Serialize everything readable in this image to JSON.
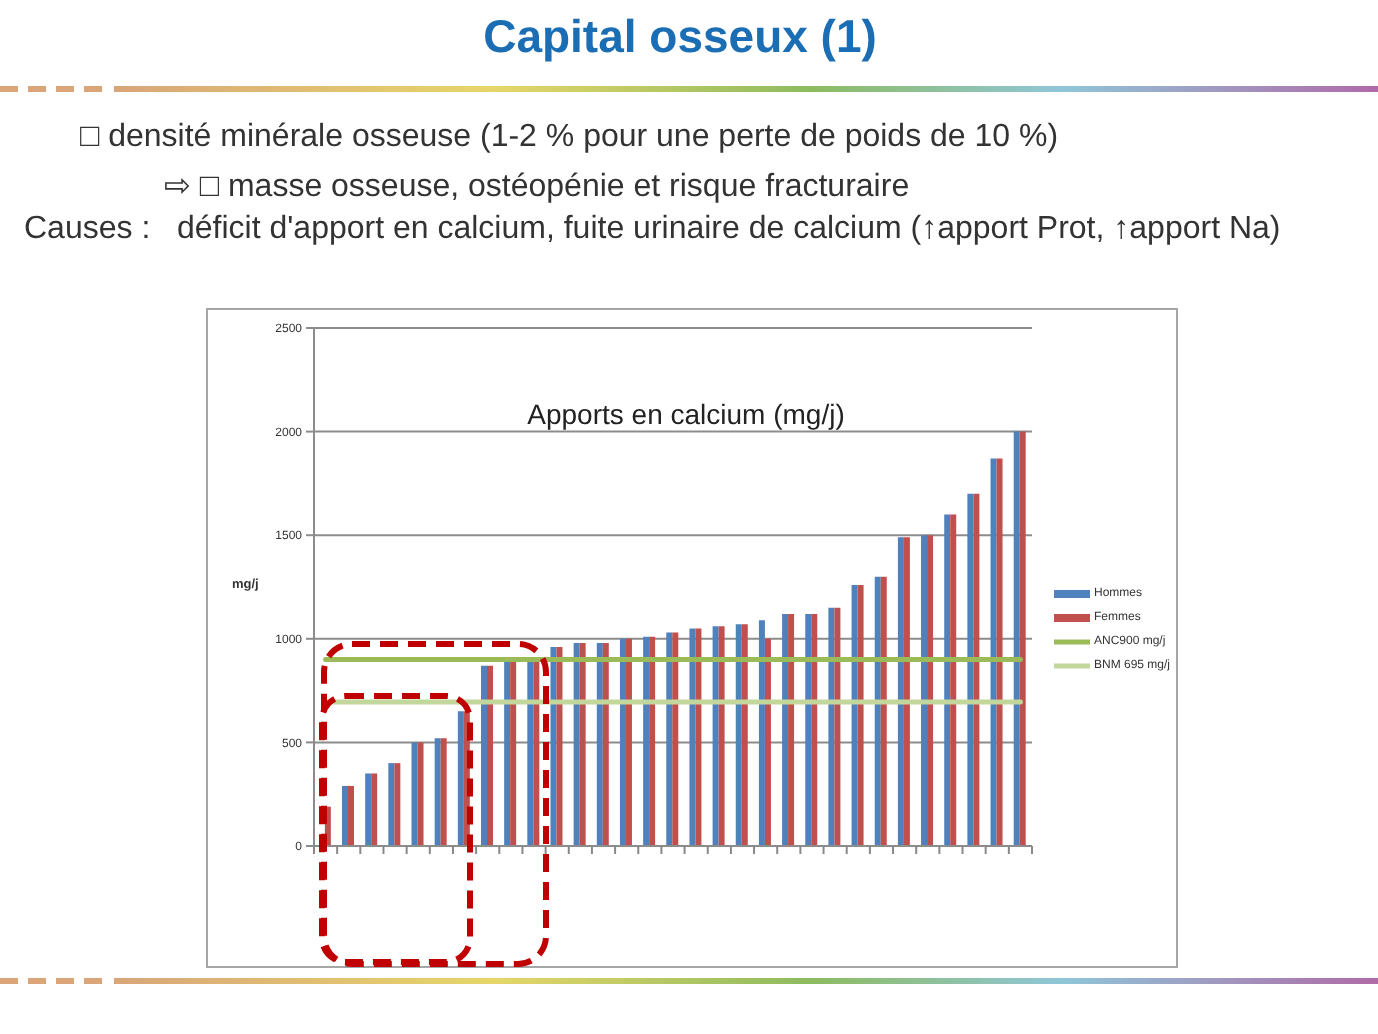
{
  "chart_data": {
    "type": "bar",
    "title": "Capital osseux (1)",
    "subtitle": "Apports en calcium (mg/j)",
    "ylabel": "mg/j",
    "annotations": [
      "□ densité minérale osseuse (1-2 % pour une perte de poids de 10 %)",
      "⇨ □ masse osseuse, ostéopénie et risque fracturaire",
      "Causes :   déficit d'apport en calcium, fuite urinaire de calcium (↑apport Prot, ↑apport Na)"
    ],
    "categories": [
      null,
      null,
      null,
      null,
      null,
      null,
      null,
      null,
      null,
      null,
      null,
      null,
      null,
      null,
      null,
      null,
      null,
      null,
      null,
      null,
      null,
      null,
      null,
      null,
      null,
      null,
      null,
      null,
      null,
      null,
      null
    ],
    "series": [
      {
        "name": "Hommes",
        "color": "#4f81bd",
        "values": [
          null,
          290,
          350,
          400,
          500,
          520,
          650,
          870,
          890,
          890,
          960,
          980,
          980,
          1000,
          1010,
          1030,
          1050,
          1060,
          1070,
          1090,
          1120,
          1120,
          1150,
          1260,
          1300,
          1490,
          1500,
          1600,
          1700,
          1870,
          2000
        ]
      },
      {
        "name": "Femmes",
        "color": "#c0504d",
        "values": [
          190,
          290,
          350,
          400,
          500,
          520,
          650,
          870,
          890,
          890,
          960,
          980,
          980,
          1000,
          1010,
          1030,
          1050,
          1060,
          1070,
          1000,
          1120,
          1120,
          1150,
          1260,
          1300,
          1490,
          1500,
          1600,
          1700,
          1870,
          2000
        ]
      },
      {
        "name": "ANC900 mg/j",
        "type": "line",
        "color": "#9bbb59",
        "values": [
          900,
          900,
          900,
          900,
          900,
          900,
          900,
          900,
          900,
          900,
          900,
          900,
          900,
          900,
          900,
          900,
          900,
          900,
          900,
          900,
          900,
          900,
          900,
          900,
          900,
          900,
          900,
          900,
          900,
          900,
          900
        ]
      },
      {
        "name": "BNM 695 mg/j",
        "type": "line",
        "color": "#c3d69b",
        "values": [
          695,
          695,
          695,
          695,
          695,
          695,
          695,
          695,
          695,
          695,
          695,
          695,
          695,
          695,
          695,
          695,
          695,
          695,
          695,
          695,
          695,
          695,
          695,
          695,
          695,
          695,
          695,
          695,
          695,
          695,
          695
        ]
      }
    ],
    "ylim": [
      0,
      2500
    ],
    "yticks": [
      0,
      500,
      1000,
      1500,
      2000,
      2500
    ],
    "grid": "y",
    "legend": "right"
  }
}
